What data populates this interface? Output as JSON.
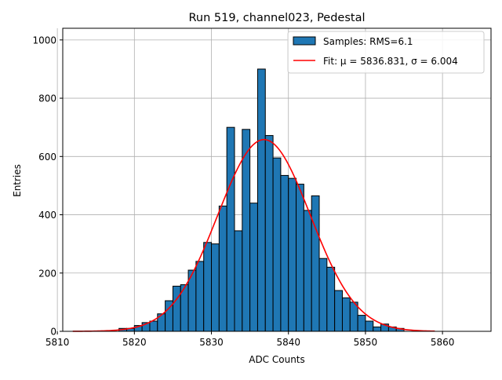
{
  "chart_data": {
    "type": "bar",
    "title": "Run 519, channel023, Pedestal",
    "xlabel": "ADC Counts",
    "ylabel": "Entries",
    "xlim": [
      5810.7,
      5866.3
    ],
    "ylim": [
      0,
      1040
    ],
    "grid": true,
    "legend_position": "top-right",
    "x_ticks": [
      5810,
      5820,
      5830,
      5840,
      5850,
      5860
    ],
    "y_ticks": [
      0,
      200,
      400,
      600,
      800,
      1000
    ],
    "bin_width": 1,
    "bins": {
      "edges_start": 5818,
      "values": [
        10,
        10,
        20,
        30,
        35,
        60,
        105,
        155,
        160,
        210,
        240,
        305,
        300,
        430,
        700,
        345,
        693,
        440,
        900,
        672,
        595,
        535,
        525,
        505,
        415,
        465,
        250,
        220,
        140,
        115,
        100,
        55,
        35,
        15,
        25,
        15,
        10
      ]
    },
    "series": [
      {
        "name": "Samples: RMS=6.1",
        "type": "histogram",
        "color": "#1f77b4",
        "edgecolor": "#000000"
      },
      {
        "name": "Fit: μ = 5836.831, σ = 6.004",
        "type": "line",
        "color": "#ff0000",
        "mu": 5836.831,
        "sigma": 6.004,
        "peak": 658,
        "x_range": [
          5812,
          5859
        ]
      }
    ]
  }
}
